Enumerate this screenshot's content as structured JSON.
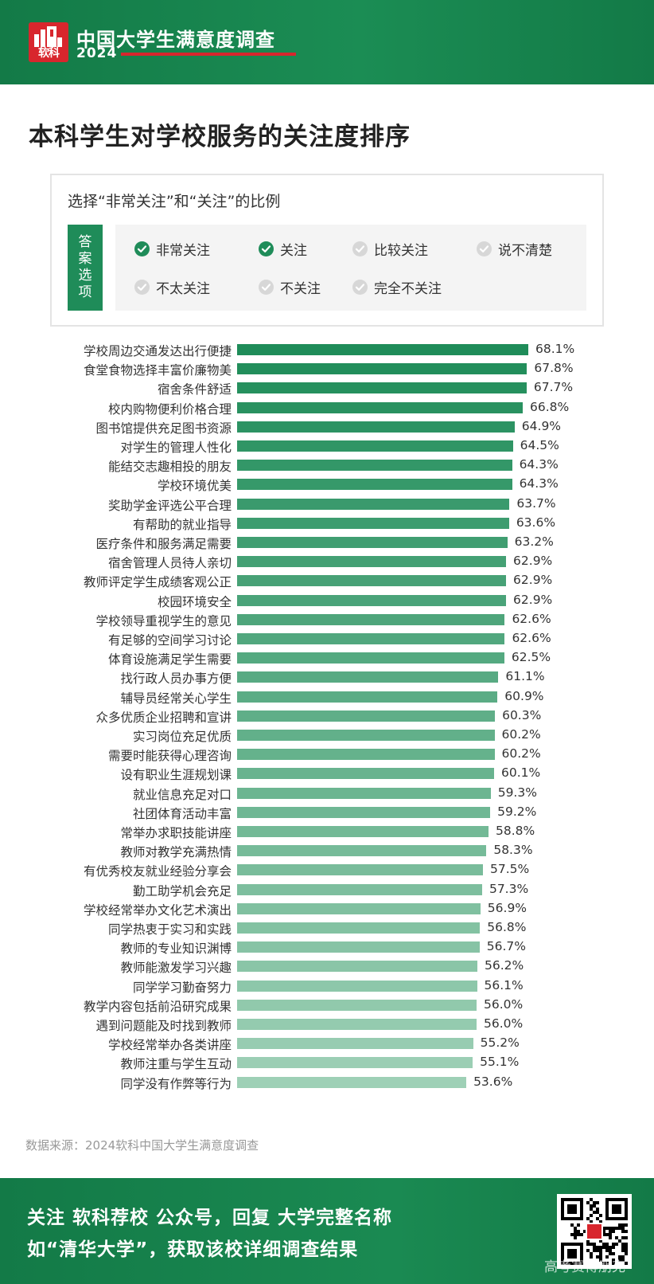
{
  "header": {
    "logo_text": "软科",
    "title": "中国大学生满意度调查",
    "year": "2024"
  },
  "page_title": "本科学生对学校服务的关注度排序",
  "legend": {
    "heading": "选择“非常关注”和“关注”的比例",
    "tag": [
      "答",
      "案",
      "选",
      "项"
    ],
    "options": [
      {
        "label": "非常关注",
        "selected": true
      },
      {
        "label": "关注",
        "selected": true
      },
      {
        "label": "比较关注",
        "selected": false
      },
      {
        "label": "说不清楚",
        "selected": false
      },
      {
        "label": "不太关注",
        "selected": false
      },
      {
        "label": "不关注",
        "selected": false
      },
      {
        "label": "完全不关注",
        "selected": false
      }
    ]
  },
  "chart_data": {
    "type": "bar",
    "orientation": "horizontal",
    "categories": [
      "学校周边交通发达出行便捷",
      "食堂食物选择丰富价廉物美",
      "宿舍条件舒适",
      "校内购物便利价格合理",
      "图书馆提供充足图书资源",
      "对学生的管理人性化",
      "能结交志趣相投的朋友",
      "学校环境优美",
      "奖助学金评选公平合理",
      "有帮助的就业指导",
      "医疗条件和服务满足需要",
      "宿舍管理人员待人亲切",
      "教师评定学生成绩客观公正",
      "校园环境安全",
      "学校领导重视学生的意见",
      "有足够的空间学习讨论",
      "体育设施满足学生需要",
      "找行政人员办事方便",
      "辅导员经常关心学生",
      "众多优质企业招聘和宣讲",
      "实习岗位充足优质",
      "需要时能获得心理咨询",
      "设有职业生涯规划课",
      "就业信息充足对口",
      "社团体育活动丰富",
      "常举办求职技能讲座",
      "教师对教学充满热情",
      "有优秀校友就业经验分享会",
      "勤工助学机会充足",
      "学校经常举办文化艺术演出",
      "同学热衷于实习和实践",
      "教师的专业知识渊博",
      "教师能激发学习兴趣",
      "同学学习勤奋努力",
      "教学内容包括前沿研究成果",
      "遇到问题能及时找到教师",
      "学校经常举办各类讲座",
      "教师注重与学生互动",
      "同学没有作弊等行为"
    ],
    "values": [
      68.1,
      67.8,
      67.7,
      66.8,
      64.9,
      64.5,
      64.3,
      64.3,
      63.7,
      63.6,
      63.2,
      62.9,
      62.9,
      62.9,
      62.6,
      62.6,
      62.5,
      61.1,
      60.9,
      60.3,
      60.2,
      60.2,
      60.1,
      59.3,
      59.2,
      58.8,
      58.3,
      57.5,
      57.3,
      56.9,
      56.8,
      56.7,
      56.2,
      56.1,
      56.0,
      56.0,
      55.2,
      55.1,
      53.6
    ],
    "value_labels": [
      "68.1%",
      "67.8%",
      "67.7%",
      "66.8%",
      "64.9%",
      "64.5%",
      "64.3%",
      "64.3%",
      "63.7%",
      "63.6%",
      "63.2%",
      "62.9%",
      "62.9%",
      "62.9%",
      "62.6%",
      "62.6%",
      "62.5%",
      "61.1%",
      "60.9%",
      "60.3%",
      "60.2%",
      "60.2%",
      "60.1%",
      "59.3%",
      "59.2%",
      "58.8%",
      "58.3%",
      "57.5%",
      "57.3%",
      "56.9%",
      "56.8%",
      "56.7%",
      "56.2%",
      "56.1%",
      "56.0%",
      "56.0%",
      "55.2%",
      "55.1%",
      "53.6%"
    ],
    "unit": "%",
    "xlim": [
      0,
      68.1
    ],
    "grid": false,
    "legend": "none",
    "colors": {
      "dark": "#1f8c59",
      "light": "#9ed0b6"
    }
  },
  "source": "数据来源：2024软科中国大学生满意度调查",
  "footer": {
    "line1": "关注 软科荐校 公众号，回复 大学完整名称",
    "line2": "如“清华大学”，获取该校详细调查结果",
    "watermark": "高考赛博朋克"
  },
  "colors": {
    "brand_green": "#17884f",
    "brand_red": "#d8262d",
    "option_on": "#1f8c59",
    "option_off": "#d7d7d7"
  }
}
